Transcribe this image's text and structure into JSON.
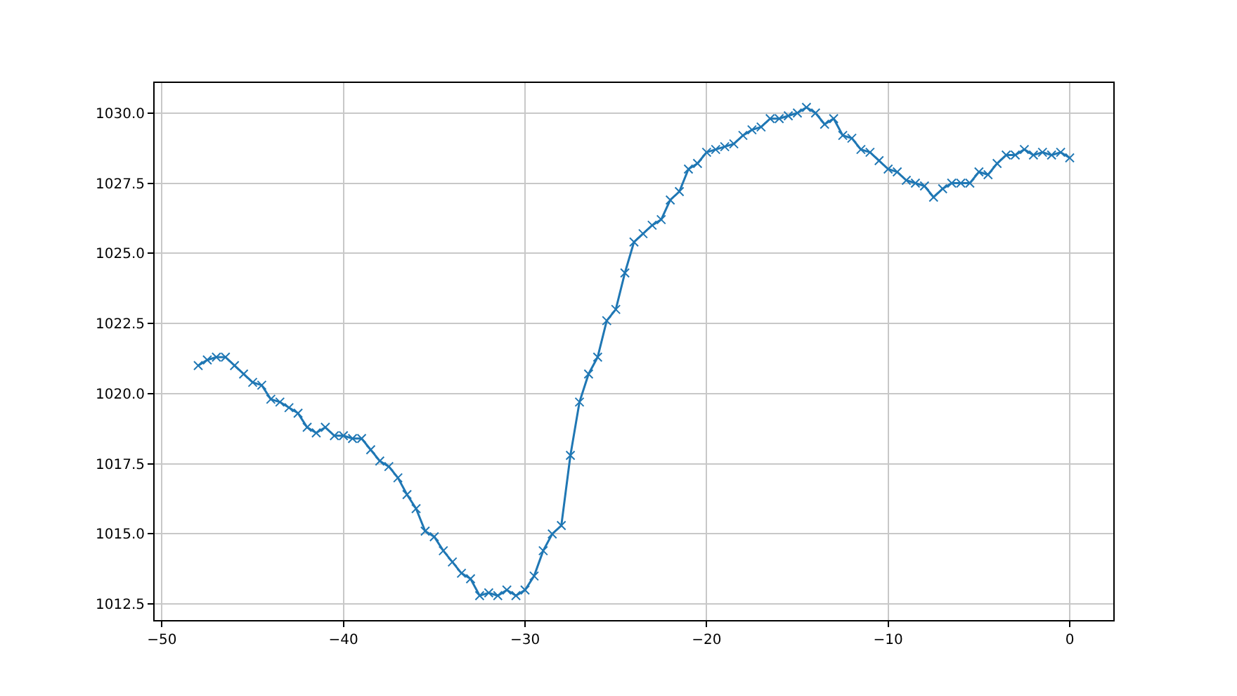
{
  "chart_data": {
    "type": "line",
    "marker": "cross",
    "grid": true,
    "x": [
      -48,
      -47.5,
      -47,
      -46.5,
      -46,
      -45.5,
      -45,
      -44.5,
      -44,
      -43.5,
      -43,
      -42.5,
      -42,
      -41.5,
      -41,
      -40.5,
      -40,
      -39.5,
      -39,
      -38.5,
      -38,
      -37.5,
      -37,
      -36.5,
      -36,
      -35.5,
      -35,
      -34.5,
      -34,
      -33.5,
      -33,
      -32.5,
      -32,
      -31.5,
      -31,
      -30.5,
      -30,
      -29.5,
      -29,
      -28.5,
      -28,
      -27.5,
      -27,
      -26.5,
      -26,
      -25.5,
      -25,
      -24.5,
      -24,
      -23.5,
      -23,
      -22.5,
      -22,
      -21.5,
      -21,
      -20.5,
      -20,
      -19.5,
      -19,
      -18.5,
      -18,
      -17.5,
      -17,
      -16.5,
      -16,
      -15.5,
      -15,
      -14.5,
      -14,
      -13.5,
      -13,
      -12.5,
      -12,
      -11.5,
      -11,
      -10.5,
      -10,
      -9.5,
      -9,
      -8.5,
      -8,
      -7.5,
      -7,
      -6.5,
      -6,
      -5.5,
      -5,
      -4.5,
      -4,
      -3.5,
      -3,
      -2.5,
      -2,
      -1.5,
      -1,
      -0.5,
      0
    ],
    "series": [
      {
        "color": "#1f77b4",
        "values": [
          1021.0,
          1021.2,
          1021.3,
          1021.3,
          1021.0,
          1020.7,
          1020.4,
          1020.3,
          1019.8,
          1019.7,
          1019.5,
          1019.3,
          1018.8,
          1018.6,
          1018.8,
          1018.5,
          1018.5,
          1018.4,
          1018.4,
          1018.0,
          1017.6,
          1017.4,
          1017.0,
          1016.4,
          1015.9,
          1015.1,
          1014.9,
          1014.4,
          1014.0,
          1013.6,
          1013.4,
          1012.8,
          1012.9,
          1012.8,
          1013.0,
          1012.8,
          1013.0,
          1013.5,
          1014.4,
          1015.0,
          1015.3,
          1017.8,
          1019.7,
          1020.7,
          1021.3,
          1022.6,
          1023.0,
          1024.3,
          1025.4,
          1025.7,
          1026.0,
          1026.2,
          1026.9,
          1027.2,
          1028.0,
          1028.2,
          1028.6,
          1028.7,
          1028.8,
          1028.9,
          1029.2,
          1029.4,
          1029.5,
          1029.8,
          1029.8,
          1029.9,
          1030.0,
          1030.2,
          1030.0,
          1029.6,
          1029.8,
          1029.2,
          1029.1,
          1028.7,
          1028.6,
          1028.3,
          1028.0,
          1027.9,
          1027.6,
          1027.5,
          1027.4,
          1027.0,
          1027.3,
          1027.5,
          1027.5,
          1027.5,
          1027.9,
          1027.8,
          1028.2,
          1028.5,
          1028.5,
          1028.7,
          1028.5,
          1028.6,
          1028.5,
          1028.6,
          1028.4
        ]
      }
    ],
    "xlim": [
      -50.4,
      2.4
    ],
    "xticks": [
      {
        "value": -50,
        "label": "−50"
      },
      {
        "value": -40,
        "label": "−40"
      },
      {
        "value": -30,
        "label": "−30"
      },
      {
        "value": -20,
        "label": "−20"
      },
      {
        "value": -10,
        "label": "−10"
      },
      0
    ],
    "ylim": [
      1011.93,
      1031.07
    ],
    "yticks": [
      {
        "value": 1012.5,
        "label": "1012.5"
      },
      {
        "value": 1015,
        "label": "1015.0"
      },
      {
        "value": 1017.5,
        "label": "1017.5"
      },
      {
        "value": 1020,
        "label": "1020.0"
      },
      {
        "value": 1022.5,
        "label": "1022.5"
      },
      {
        "value": 1025,
        "label": "1025.0"
      },
      {
        "value": 1027.5,
        "label": "1027.5"
      },
      {
        "value": 1030,
        "label": "1030.0"
      }
    ]
  }
}
